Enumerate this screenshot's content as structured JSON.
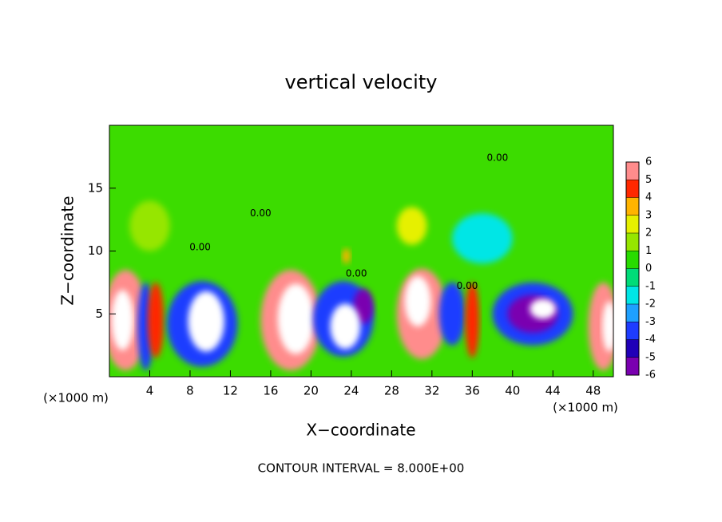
{
  "chart_data": {
    "type": "heatmap",
    "title": "vertical velocity",
    "x_label": "X−coordinate",
    "y_label": "Z−coordinate",
    "x_unit": "(×1000 m)",
    "y_unit": "(×1000 m)",
    "footer": "CONTOUR INTERVAL = 8.000E+00",
    "xlim": [
      0,
      50
    ],
    "ylim": [
      0,
      20
    ],
    "xticks": [
      4,
      8,
      12,
      16,
      20,
      24,
      28,
      32,
      36,
      40,
      44,
      48
    ],
    "yticks": [
      5,
      10,
      15
    ],
    "colorbar_ticks": [
      -6,
      -5,
      -4,
      -3,
      -2,
      -1,
      0,
      1,
      2,
      3,
      4,
      5,
      6
    ],
    "colors": [
      "#7a00b0",
      "#2000b8",
      "#1e3cff",
      "#1ea0ff",
      "#00e6e6",
      "#00dc78",
      "#28dc00",
      "#96e600",
      "#e6f000",
      "#ffb400",
      "#ff2800",
      "#ff8c8c"
    ],
    "over_color": "#ffffff",
    "blobs": [
      {
        "x": 1.6,
        "y": 4.5,
        "rx": 2.2,
        "ry": 4,
        "value": 5
      },
      {
        "x": 1.3,
        "y": 4.5,
        "rx": 1.1,
        "ry": 2.4,
        "value": 8
      },
      {
        "x": 3.6,
        "y": 4,
        "rx": 0.8,
        "ry": 3.5,
        "value": -4
      },
      {
        "x": 4.6,
        "y": 4.5,
        "rx": 0.8,
        "ry": 3,
        "value": 4
      },
      {
        "x": 9.2,
        "y": 4.2,
        "rx": 3.5,
        "ry": 3.4,
        "value": -4
      },
      {
        "x": 9.6,
        "y": 4.4,
        "rx": 1.8,
        "ry": 2.4,
        "value": 8
      },
      {
        "x": 18,
        "y": 4.5,
        "rx": 3,
        "ry": 4,
        "value": 5
      },
      {
        "x": 18.5,
        "y": 4.6,
        "rx": 1.8,
        "ry": 2.8,
        "value": 8
      },
      {
        "x": 23.2,
        "y": 4.6,
        "rx": 3,
        "ry": 3,
        "value": -4
      },
      {
        "x": 25.2,
        "y": 5.6,
        "rx": 1,
        "ry": 1.4,
        "value": -6
      },
      {
        "x": 23.4,
        "y": 4,
        "rx": 1.5,
        "ry": 1.8,
        "value": 8
      },
      {
        "x": 31,
        "y": 5,
        "rx": 2.5,
        "ry": 3.6,
        "value": 5
      },
      {
        "x": 30.6,
        "y": 6,
        "rx": 1.3,
        "ry": 2,
        "value": 8
      },
      {
        "x": 34,
        "y": 5,
        "rx": 1.3,
        "ry": 2.5,
        "value": -4
      },
      {
        "x": 36,
        "y": 4.5,
        "rx": 0.7,
        "ry": 3,
        "value": 4
      },
      {
        "x": 42,
        "y": 5,
        "rx": 4,
        "ry": 2.5,
        "value": -4
      },
      {
        "x": 42,
        "y": 5,
        "rx": 2.5,
        "ry": 1.5,
        "value": -6
      },
      {
        "x": 43,
        "y": 5.4,
        "rx": 1.3,
        "ry": 0.8,
        "value": 8
      },
      {
        "x": 49,
        "y": 4,
        "rx": 1.5,
        "ry": 3.5,
        "value": 5
      },
      {
        "x": 49.6,
        "y": 4,
        "rx": 0.7,
        "ry": 2,
        "value": 8
      },
      {
        "x": 37,
        "y": 11,
        "rx": 3,
        "ry": 2,
        "value": -2
      },
      {
        "x": 30,
        "y": 12,
        "rx": 1.5,
        "ry": 1.5,
        "value": 2
      },
      {
        "x": 23.5,
        "y": 9.6,
        "rx": 0.4,
        "ry": 0.6,
        "value": 3
      },
      {
        "x": 4,
        "y": 12,
        "rx": 2,
        "ry": 2,
        "value": 1
      }
    ],
    "annotations": [
      {
        "text": "0.00",
        "x": 9,
        "y": 10.3
      },
      {
        "text": "0.00",
        "x": 15,
        "y": 13
      },
      {
        "text": "0.00",
        "x": 24.5,
        "y": 8.2
      },
      {
        "text": "0.00",
        "x": 38.5,
        "y": 17.4
      },
      {
        "text": "0.00",
        "x": 35.5,
        "y": 7.2
      }
    ]
  }
}
